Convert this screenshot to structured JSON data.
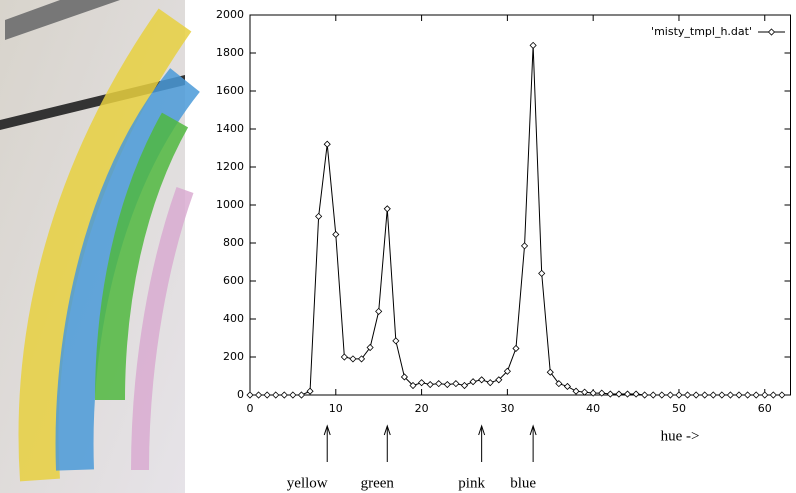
{
  "chart_data": {
    "type": "line",
    "xlabel": "hue ->",
    "x": [
      0,
      1,
      2,
      3,
      4,
      5,
      6,
      7,
      8,
      9,
      10,
      11,
      12,
      13,
      14,
      15,
      16,
      17,
      18,
      19,
      20,
      21,
      22,
      23,
      24,
      25,
      26,
      27,
      28,
      29,
      30,
      31,
      32,
      33,
      34,
      35,
      36,
      37,
      38,
      39,
      40,
      41,
      42,
      43,
      44,
      45,
      46,
      47,
      48,
      49,
      50,
      51,
      52,
      53,
      54,
      55,
      56,
      57,
      58,
      59,
      60,
      61,
      62
    ],
    "series": [
      {
        "name": "'misty_tmpl_h.dat'",
        "color": "#000000",
        "values": [
          0,
          0,
          0,
          0,
          0,
          0,
          0,
          20,
          940,
          1320,
          845,
          200,
          190,
          190,
          250,
          440,
          980,
          285,
          95,
          50,
          65,
          55,
          60,
          55,
          60,
          50,
          70,
          80,
          65,
          80,
          125,
          245,
          785,
          1840,
          640,
          120,
          60,
          45,
          20,
          15,
          10,
          10,
          5,
          5,
          5,
          5,
          0,
          0,
          0,
          0,
          0,
          0,
          0,
          0,
          0,
          0,
          0,
          0,
          0,
          0,
          0,
          0,
          0
        ]
      }
    ],
    "xlim": [
      0,
      63
    ],
    "xticks": [
      0,
      10,
      20,
      30,
      40,
      50,
      60
    ],
    "ylim": [
      0,
      2000
    ],
    "yticks": [
      0,
      200,
      400,
      600,
      800,
      1000,
      1200,
      1400,
      1600,
      1800,
      2000
    ],
    "legend": "top-right",
    "annotations": [
      {
        "label": "yellow",
        "x": 9
      },
      {
        "label": "green",
        "x": 16
      },
      {
        "label": "pink",
        "x": 27
      },
      {
        "label": "blue",
        "x": 33
      }
    ]
  }
}
